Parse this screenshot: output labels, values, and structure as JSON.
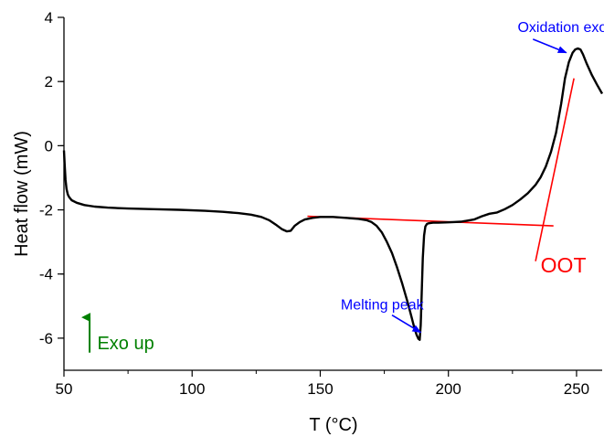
{
  "chart_data": {
    "type": "line",
    "xlabel": "T (°C)",
    "ylabel": "Heat flow (mW)",
    "xlim": [
      50,
      260
    ],
    "ylim": [
      -7,
      4
    ],
    "xticks": [
      50,
      100,
      150,
      200,
      250
    ],
    "yticks": [
      -6,
      -4,
      -2,
      0,
      2,
      4
    ],
    "grid": false,
    "series": [
      {
        "color": "#000000",
        "x": [
          50.0,
          50.3,
          50.6,
          51.0,
          51.5,
          52,
          53,
          55,
          58,
          62,
          67,
          75,
          85,
          95,
          105,
          112,
          118,
          123,
          127,
          130,
          133,
          135,
          137,
          138.5,
          140,
          142,
          144,
          147,
          150,
          155,
          160,
          165,
          168,
          170,
          172,
          174,
          176,
          178,
          180,
          182,
          184,
          185.5,
          186.5,
          187.5,
          188.3,
          188.8,
          189.2,
          189.6,
          190.0,
          190.5,
          191,
          191.6,
          192.2,
          193,
          194,
          196,
          200,
          205,
          210,
          213,
          216,
          219,
          222,
          225,
          228,
          231,
          234,
          236,
          238,
          240,
          242,
          244,
          245.5,
          247,
          248.5,
          249.5,
          250.5,
          251.5,
          252.5,
          254,
          256,
          258,
          260
        ],
        "y": [
          -0.15,
          -0.6,
          -1.05,
          -1.35,
          -1.52,
          -1.6,
          -1.7,
          -1.78,
          -1.85,
          -1.9,
          -1.93,
          -1.96,
          -1.98,
          -2.0,
          -2.03,
          -2.06,
          -2.1,
          -2.15,
          -2.22,
          -2.32,
          -2.48,
          -2.6,
          -2.67,
          -2.65,
          -2.5,
          -2.38,
          -2.3,
          -2.25,
          -2.22,
          -2.22,
          -2.25,
          -2.28,
          -2.32,
          -2.38,
          -2.5,
          -2.7,
          -3.0,
          -3.35,
          -3.8,
          -4.3,
          -4.85,
          -5.3,
          -5.62,
          -5.88,
          -6.02,
          -6.05,
          -5.6,
          -4.6,
          -3.5,
          -2.8,
          -2.52,
          -2.44,
          -2.42,
          -2.41,
          -2.4,
          -2.4,
          -2.39,
          -2.37,
          -2.3,
          -2.2,
          -2.12,
          -2.08,
          -1.98,
          -1.85,
          -1.68,
          -1.48,
          -1.22,
          -0.98,
          -0.65,
          -0.2,
          0.4,
          1.3,
          2.1,
          2.6,
          2.9,
          3.0,
          3.03,
          3.0,
          2.85,
          2.55,
          2.2,
          1.9,
          1.62
        ]
      }
    ],
    "lines": [
      {
        "name": "baseline",
        "color": "#ff0000",
        "x": [
          145,
          241
        ],
        "y": [
          -2.2,
          -2.5
        ]
      },
      {
        "name": "tangent",
        "color": "#ff0000",
        "x": [
          234,
          249
        ],
        "y": [
          -3.6,
          2.1
        ]
      }
    ],
    "annotations": [
      {
        "text": "Oxidation exotherm",
        "color": "#0000ff",
        "x": 227,
        "y": 3.55,
        "arrow_to": [
          246,
          2.9
        ]
      },
      {
        "text": "Melting peak",
        "color": "#0000ff",
        "x": 158,
        "y": -5.1,
        "arrow_to": [
          189.2,
          -5.82
        ]
      },
      {
        "text": "OOT",
        "color": "#ff0000",
        "x": 236,
        "y": -3.95
      },
      {
        "text": "Exo up",
        "color": "#008000",
        "x": 63,
        "y": -6.35,
        "arrow_from": [
          60,
          -6.45
        ],
        "arrow_to": [
          60,
          -5.35
        ]
      }
    ]
  }
}
